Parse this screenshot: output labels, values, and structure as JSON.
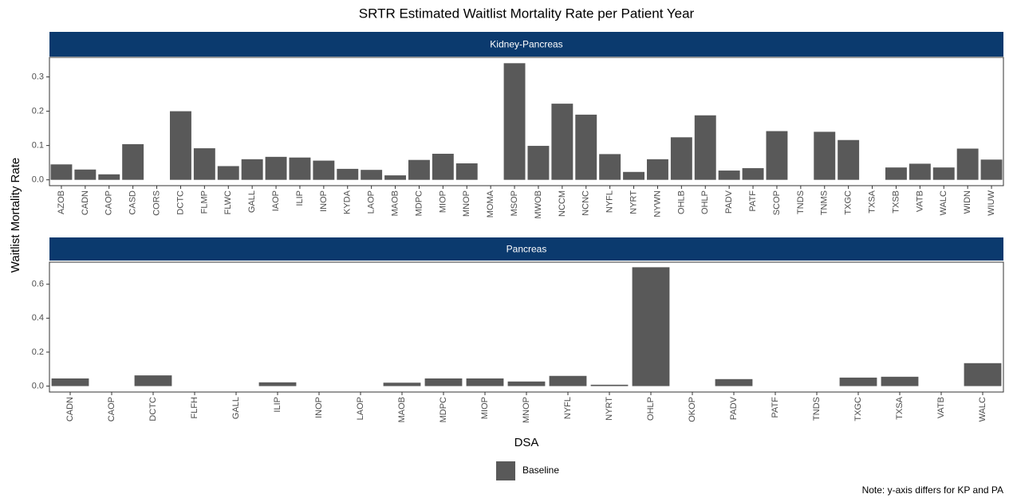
{
  "title": "SRTR Estimated Waitlist Mortality Rate per Patient Year",
  "x_label": "DSA",
  "y_label": "Waitlist Mortality Rate",
  "legend": {
    "name": "Baseline",
    "color": "#595959"
  },
  "note": "Note: y-axis differs for KP and PA",
  "chart_data": [
    {
      "type": "bar",
      "panel": "Kidney-Pancreas",
      "color": "#595959",
      "categories": [
        "AZOB",
        "CADN",
        "CAOP",
        "CASD",
        "CORS",
        "DCTC",
        "FLMP",
        "FLWC",
        "GALL",
        "IAOP",
        "ILIP",
        "INOP",
        "KYDA",
        "LAOP",
        "MAOB",
        "MDPC",
        "MIOP",
        "MNOP",
        "MOMA",
        "MSOP",
        "MWOB",
        "NCCM",
        "NCNC",
        "NYFL",
        "NYRT",
        "NYWN",
        "OHLB",
        "OHLP",
        "PADV",
        "PATF",
        "SCOP",
        "TNDS",
        "TNMS",
        "TXGC",
        "TXSA",
        "TXSB",
        "VATB",
        "WALC",
        "WIDN",
        "WIUW"
      ],
      "values": [
        0.045,
        0.03,
        0.016,
        0.104,
        0,
        0.2,
        0.092,
        0.04,
        0.06,
        0.067,
        0.065,
        0.056,
        0.032,
        0.029,
        0.013,
        0.058,
        0.076,
        0.048,
        0,
        0.34,
        0.099,
        0.222,
        0.19,
        0.075,
        0.023,
        0.06,
        0.124,
        0.188,
        0.027,
        0.034,
        0.142,
        0,
        0.14,
        0.116,
        0,
        0.036,
        0.047,
        0.036,
        0.091,
        0.059
      ],
      "ylim": [
        -0.017,
        0.357
      ],
      "yticks": [
        {
          "value": 0,
          "label": "0.0"
        },
        0.1,
        0.2,
        0.3
      ]
    },
    {
      "type": "bar",
      "panel": "Pancreas",
      "color": "#595959",
      "categories": [
        "CADN",
        "CAOP",
        "DCTC",
        "FLFH",
        "GALL",
        "ILIP",
        "INOP",
        "LAOP",
        "MAOB",
        "MDPC",
        "MIOP",
        "MNOP",
        "NYFL",
        "NYRT",
        "OHLP",
        "OKOP",
        "PADV",
        "PATF",
        "TNDS",
        "TXGC",
        "TXSA",
        "VATB",
        "WALC"
      ],
      "values": [
        0.045,
        0,
        0.063,
        0,
        0,
        0.022,
        0,
        0,
        0.02,
        0.045,
        0.045,
        0.027,
        0.06,
        0.008,
        0.7,
        0,
        0.041,
        0,
        0,
        0.05,
        0.055,
        0,
        0.135
      ],
      "ylim": [
        -0.035,
        0.73
      ],
      "yticks": [
        {
          "value": 0,
          "label": "0.0"
        },
        0.2,
        0.4,
        0.6
      ]
    }
  ]
}
